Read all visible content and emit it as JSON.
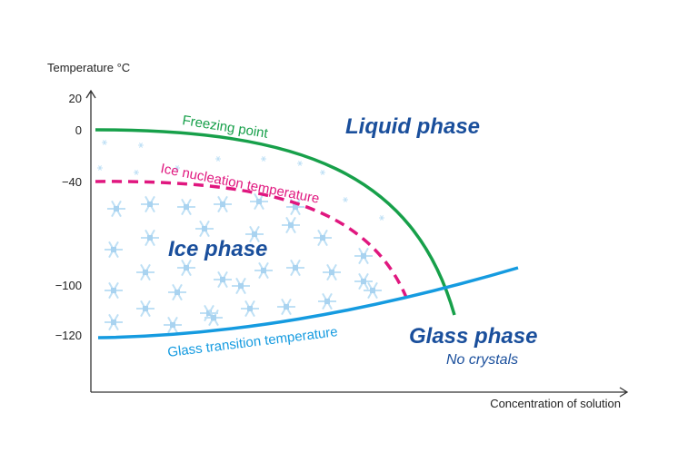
{
  "axes": {
    "y_label": "Temperature °C",
    "x_label": "Concentration of solution",
    "y_ticks": [
      "20",
      "0",
      "−40",
      "−100",
      "−120"
    ]
  },
  "curves": {
    "freezing": "Freezing point",
    "nucleation": "Ice nucleation temperature",
    "glass_transition": "Glass transition temperature"
  },
  "regions": {
    "liquid": "Liquid phase",
    "ice": "Ice phase",
    "glass": "Glass phase",
    "glass_note": "No crystals"
  }
}
